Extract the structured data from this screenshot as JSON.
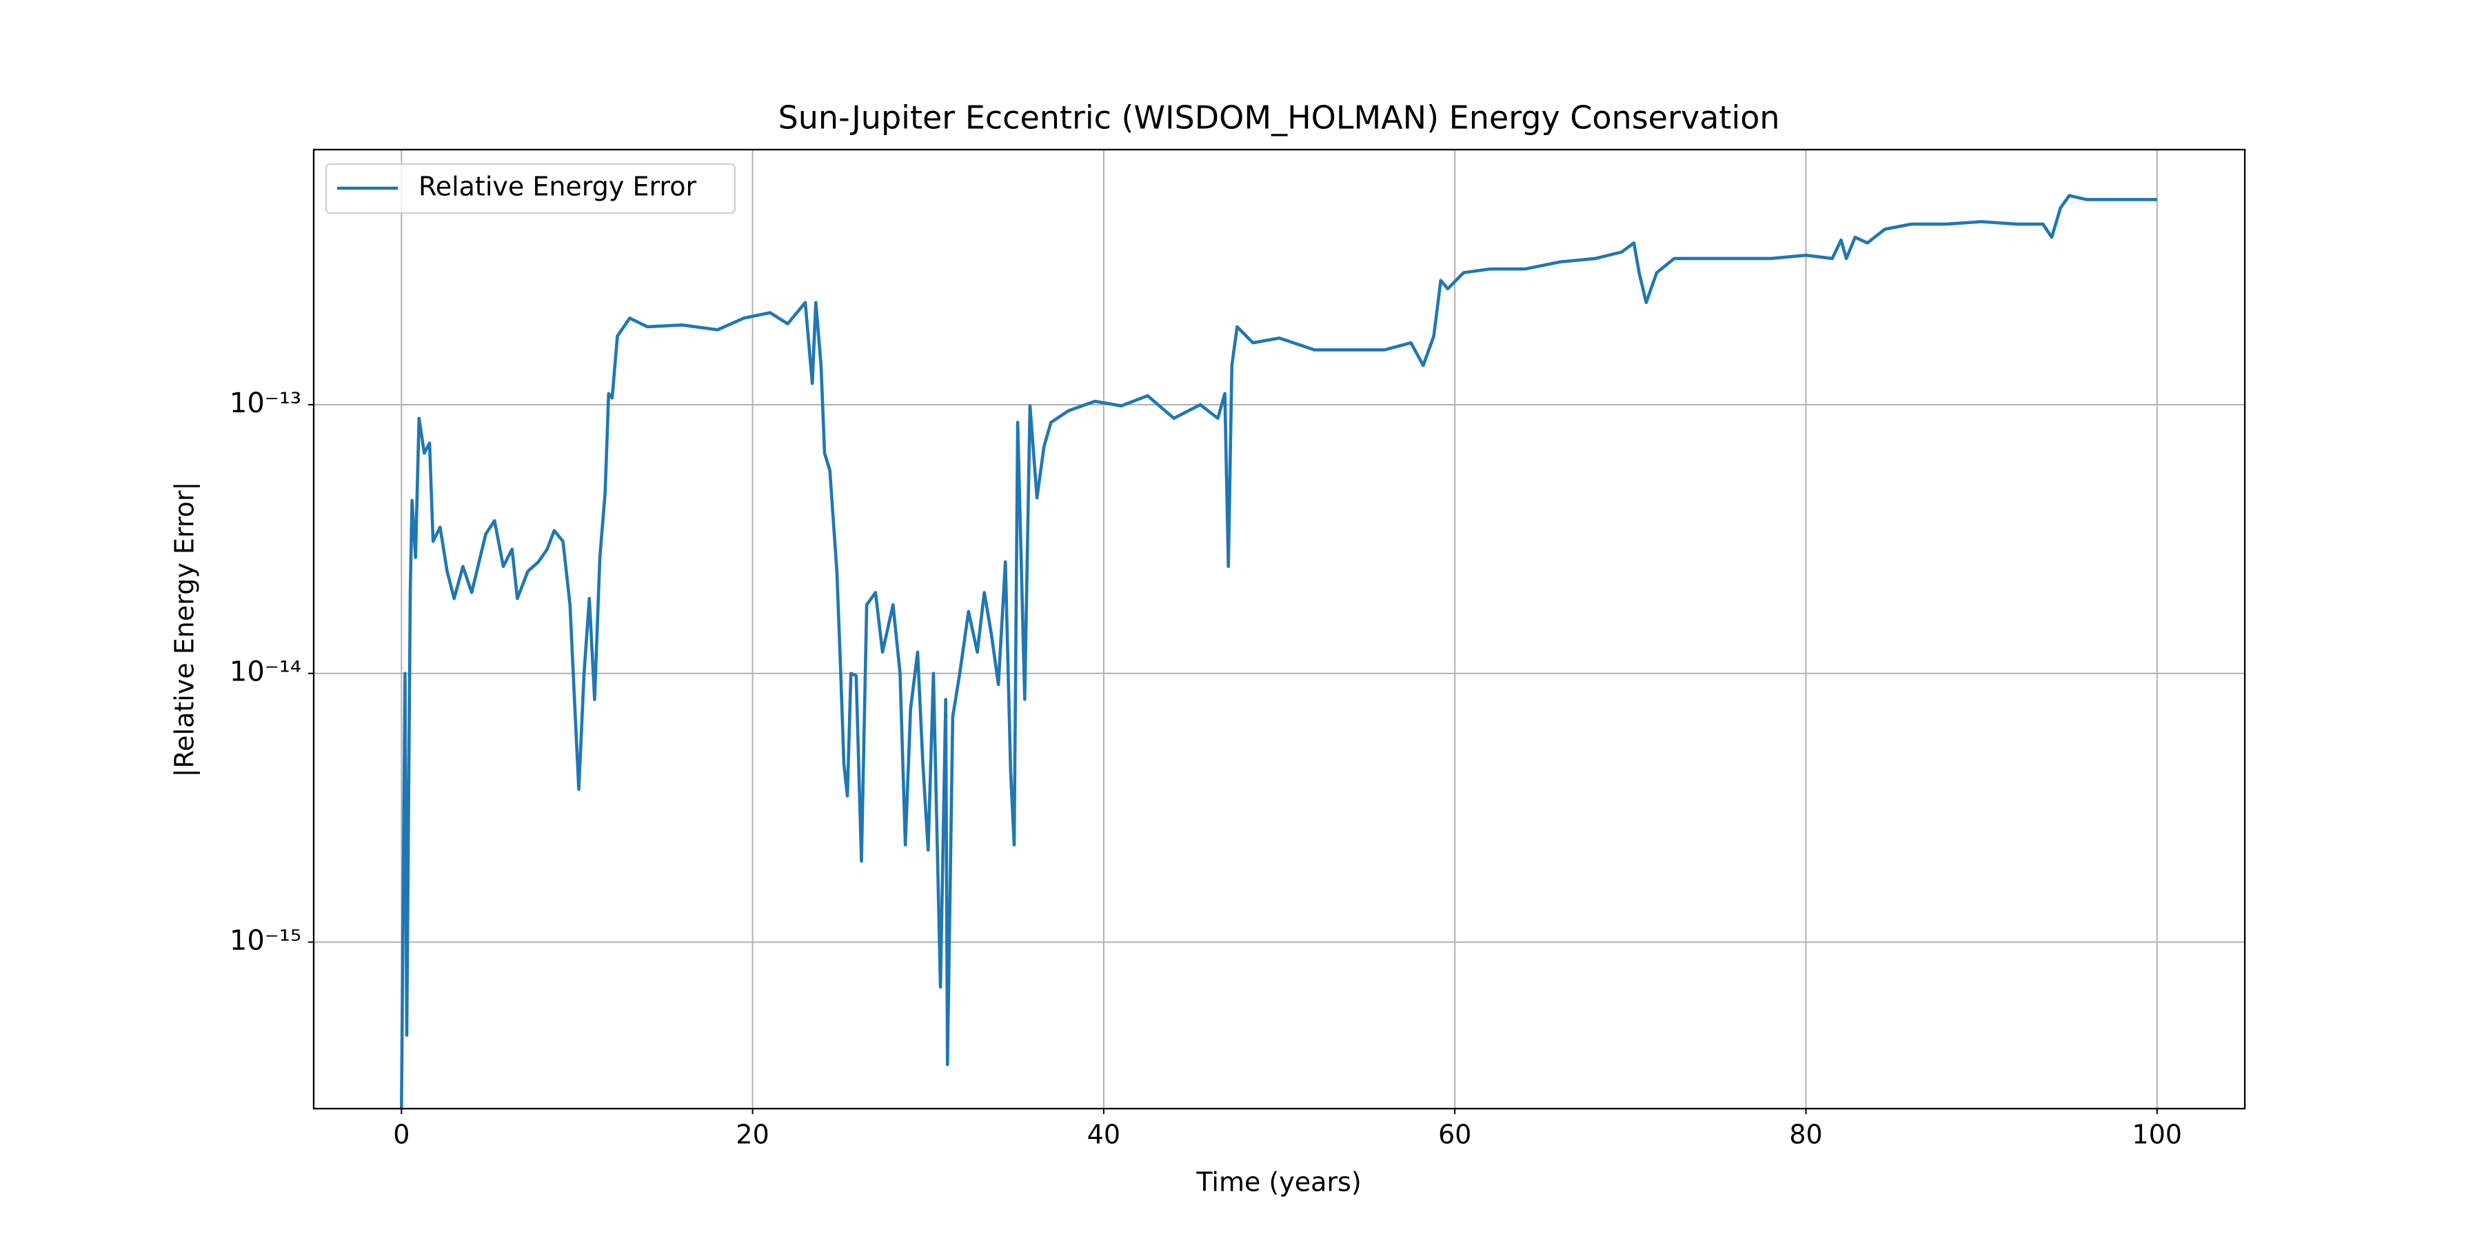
{
  "chart_data": {
    "type": "line",
    "title": "Sun-Jupiter Eccentric (WISDOM_HOLMAN) Energy Conservation",
    "xlabel": "Time (years)",
    "ylabel": "|Relative Energy Error|",
    "yscale": "log",
    "grid": true,
    "legend": "upper left",
    "xlim": [
      -5,
      105
    ],
    "xticks": [
      0,
      20,
      40,
      60,
      80,
      100
    ],
    "ylim": [
      2.4e-16,
      8.9e-13
    ],
    "yticks": [
      {
        "value": 1e-15,
        "label": "10⁻¹⁵"
      },
      {
        "value": 1e-14,
        "label": "10⁻¹⁴"
      },
      {
        "value": 1e-13,
        "label": "10⁻¹³"
      }
    ],
    "x": [
      0.0,
      0.2,
      0.3,
      0.5,
      0.6,
      0.8,
      1.0,
      1.3,
      1.6,
      1.8,
      2.2,
      2.6,
      3.0,
      3.5,
      4.0,
      4.8,
      5.3,
      5.8,
      6.3,
      6.6,
      7.2,
      7.8,
      8.3,
      8.7,
      9.2,
      9.6,
      9.9,
      10.1,
      10.4,
      10.7,
      11.0,
      11.3,
      11.6,
      11.8,
      12.0,
      12.3,
      13.0,
      14.0,
      16.0,
      18.0,
      19.5,
      21.0,
      22.0,
      23.0,
      23.4,
      23.6,
      23.9,
      24.1,
      24.4,
      24.8,
      25.0,
      25.2,
      25.4,
      25.6,
      25.9,
      26.2,
      26.5,
      27.0,
      27.4,
      28.0,
      28.4,
      28.7,
      29.0,
      29.4,
      29.7,
      30.0,
      30.3,
      30.7,
      31.0,
      31.1,
      31.4,
      31.8,
      32.3,
      32.8,
      33.2,
      33.6,
      34.0,
      34.4,
      34.7,
      34.9,
      35.1,
      35.5,
      35.8,
      36.2,
      36.6,
      37.0,
      38.0,
      39.5,
      41.0,
      42.5,
      44.0,
      45.5,
      46.5,
      46.9,
      47.1,
      47.3,
      47.6,
      48.5,
      50.0,
      52.0,
      54.0,
      56.0,
      57.5,
      58.2,
      58.8,
      59.2,
      59.6,
      60.5,
      62.0,
      64.0,
      66.0,
      68.0,
      69.5,
      70.2,
      70.5,
      70.9,
      71.5,
      72.5,
      74.0,
      76.0,
      78.0,
      80.0,
      81.5,
      82.0,
      82.3,
      82.8,
      83.5,
      84.5,
      86.0,
      88.0,
      90.0,
      92.0,
      93.5,
      94.0,
      94.5,
      95.0,
      96.0,
      98.0,
      100.0
    ],
    "series": [
      {
        "name": "Relative Energy Error",
        "color": "#1f77b4",
        "values": [
          2.4e-16,
          1e-14,
          4.5e-16,
          2e-14,
          4.4e-14,
          2.7e-14,
          8.9e-14,
          6.6e-14,
          7.2e-14,
          3.1e-14,
          3.5e-14,
          2.4e-14,
          1.9e-14,
          2.5e-14,
          2e-14,
          3.3e-14,
          3.7e-14,
          2.5e-14,
          2.9e-14,
          1.9e-14,
          2.4e-14,
          2.6e-14,
          2.9e-14,
          3.4e-14,
          3.1e-14,
          1.8e-14,
          6.9e-15,
          3.7e-15,
          1e-14,
          1.9e-14,
          8e-15,
          2.7e-14,
          4.7e-14,
          1.1e-13,
          1.06e-13,
          1.8e-13,
          2.1e-13,
          1.95e-13,
          1.98e-13,
          1.9e-13,
          2.1e-13,
          2.2e-13,
          2e-13,
          2.4e-13,
          1.2e-13,
          2.4e-13,
          1.4e-13,
          6.6e-14,
          5.7e-14,
          2.4e-14,
          1.1e-14,
          4.6e-15,
          3.5e-15,
          1e-14,
          9.8e-15,
          2e-15,
          1.8e-14,
          2e-14,
          1.2e-14,
          1.8e-14,
          1e-14,
          2.3e-15,
          7.4e-15,
          1.2e-14,
          4.6e-15,
          2.2e-15,
          1e-14,
          6.8e-16,
          8e-15,
          3.5e-16,
          6.9e-15,
          1e-14,
          1.7e-14,
          1.2e-14,
          2e-14,
          1.4e-14,
          9.1e-15,
          2.6e-14,
          4.3e-15,
          2.3e-15,
          8.6e-14,
          8e-15,
          9.9e-14,
          4.5e-14,
          7e-14,
          8.6e-14,
          9.5e-14,
          1.03e-13,
          9.9e-14,
          1.08e-13,
          8.9e-14,
          1e-13,
          8.9e-14,
          1.1e-13,
          2.5e-14,
          1.4e-13,
          1.95e-13,
          1.7e-13,
          1.77e-13,
          1.6e-13,
          1.6e-13,
          1.6e-13,
          1.7e-13,
          1.4e-13,
          1.8e-13,
          2.9e-13,
          2.7e-13,
          3.1e-13,
          3.2e-13,
          3.2e-13,
          3.4e-13,
          3.5e-13,
          3.7e-13,
          4e-13,
          3.1e-13,
          2.4e-13,
          3.1e-13,
          3.5e-13,
          3.5e-13,
          3.5e-13,
          3.5e-13,
          3.6e-13,
          3.5e-13,
          4.1e-13,
          3.5e-13,
          4.2e-13,
          4e-13,
          4.5e-13,
          4.7e-13,
          4.7e-13,
          4.8e-13,
          4.7e-13,
          4.7e-13,
          4.2e-13,
          5.4e-13,
          6e-13,
          5.8e-13,
          5.8e-13,
          5.8e-13
        ]
      }
    ]
  }
}
